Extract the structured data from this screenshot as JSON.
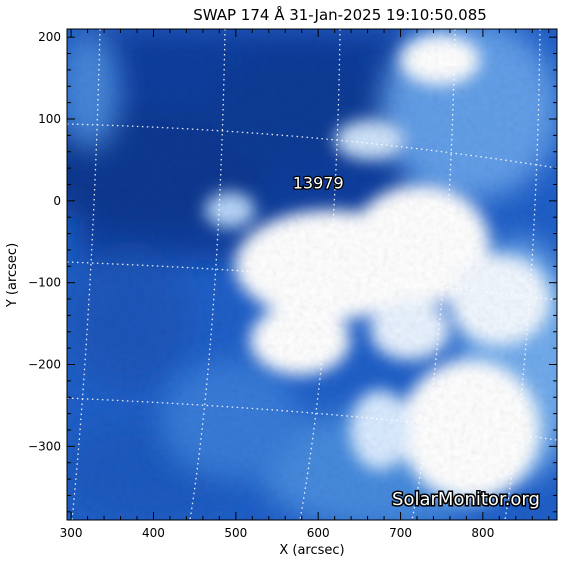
{
  "title": "SWAP 174 Å 31-Jan-2025 19:10:50.085",
  "axes": {
    "xlabel": "X (arcsec)",
    "ylabel": "Y (arcsec)",
    "xlim": [
      295,
      890
    ],
    "ylim": [
      -390,
      210
    ],
    "xticks": [
      300,
      400,
      500,
      600,
      700,
      800
    ],
    "yticks": [
      200,
      100,
      0,
      -100,
      -200,
      -300
    ]
  },
  "region": {
    "label": "13979",
    "x": 600,
    "y": 15
  },
  "watermark": "SolarMonitor.org",
  "colors": {
    "dark": "#0a3c9a",
    "mid": "#1f6fd6",
    "light": "#7fb8f2",
    "bright": "#ffffff"
  }
}
